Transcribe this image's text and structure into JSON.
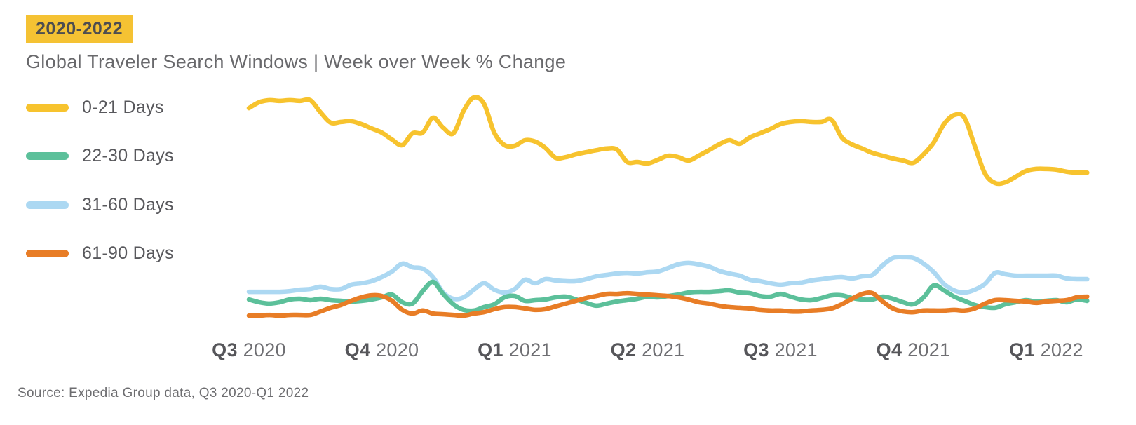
{
  "badge": {
    "label": "2020-2022"
  },
  "title": "Global Traveler Search Windows | Week over Week % Change",
  "source": "Source: Expedia Group data, Q3 2020-Q1 2022",
  "colors": {
    "badge_bg": "#F5C233",
    "badge_text": "#4E4E50",
    "title_text": "#69696C",
    "legend_text": "#58585C",
    "axis_quarter_text": "#56565A",
    "axis_year_text": "#6F6F73",
    "source_text": "#6D6D70",
    "series_yellow": "#F7C32E",
    "series_green": "#5CC09A",
    "series_blue": "#ACD8F2",
    "series_orange": "#E87D26"
  },
  "legend": [
    {
      "label": "0-21 Days",
      "color": "#F7C32E"
    },
    {
      "label": "22-30 Days",
      "color": "#5CC09A"
    },
    {
      "label": "31-60 Days",
      "color": "#ACD8F2"
    },
    {
      "label": "61-90 Days",
      "color": "#E87D26"
    }
  ],
  "chart_data": {
    "type": "line",
    "title": "Global Traveler Search Windows | Week over Week % Change",
    "x_unit": "weeks, week 0 = start of Q3 2020, weekly samples through ~2 weeks past Q1 2022 label",
    "x_labels": [
      {
        "quarter": "Q3",
        "year": "2020",
        "week": 0
      },
      {
        "quarter": "Q4",
        "year": "2020",
        "week": 13
      },
      {
        "quarter": "Q1",
        "year": "2021",
        "week": 26
      },
      {
        "quarter": "Q2",
        "year": "2021",
        "week": 39
      },
      {
        "quarter": "Q3",
        "year": "2021",
        "week": 52
      },
      {
        "quarter": "Q4",
        "year": "2021",
        "week": 65
      },
      {
        "quarter": "Q1",
        "year": "2022",
        "week": 78
      }
    ],
    "x_range_weeks": [
      0,
      82
    ],
    "y_axis": {
      "labels_visible": false,
      "gridlines": false,
      "note": "Source chart shows no y-axis, ticks or gridlines; values below are estimated relative heights where 0 = plot bottom and 100 = plot top",
      "ylim": [
        0,
        100
      ]
    },
    "legend_position": "left",
    "series": [
      {
        "name": "0-21 Days",
        "color": "#F7C32E",
        "values": [
          92.7,
          95.2,
          96.1,
          95.8,
          96.1,
          95.8,
          96.1,
          90.9,
          86.4,
          86.7,
          87.0,
          85.8,
          83.9,
          82.1,
          79.1,
          76.7,
          81.8,
          82.1,
          88.5,
          84.2,
          81.8,
          91.5,
          97.3,
          94.5,
          82.1,
          76.7,
          76.4,
          78.8,
          78.2,
          75.5,
          71.2,
          71.5,
          72.7,
          73.6,
          74.5,
          75.2,
          74.8,
          69.4,
          69.4,
          68.8,
          70.3,
          72.1,
          71.5,
          70.0,
          72.1,
          74.5,
          77.0,
          78.8,
          77.3,
          80.0,
          81.8,
          83.6,
          85.8,
          86.7,
          87.0,
          86.7,
          86.7,
          87.6,
          80.0,
          77.0,
          75.2,
          73.3,
          72.1,
          70.9,
          70.0,
          69.1,
          72.7,
          77.9,
          85.8,
          89.7,
          88.5,
          76.4,
          64.5,
          60.3,
          60.6,
          63.0,
          65.5,
          66.4,
          66.4,
          66.1,
          65.2,
          64.8,
          64.8
        ]
      },
      {
        "name": "22-30 Days",
        "color": "#5CC09A",
        "values": [
          10.0,
          8.8,
          8.2,
          8.8,
          10.0,
          10.3,
          9.7,
          10.3,
          9.7,
          9.4,
          9.1,
          9.4,
          10.0,
          10.9,
          12.1,
          8.8,
          8.2,
          13.6,
          17.6,
          12.4,
          7.9,
          5.5,
          5.2,
          6.7,
          7.9,
          10.9,
          11.5,
          9.4,
          9.7,
          10.0,
          10.9,
          11.2,
          10.0,
          8.5,
          7.3,
          8.2,
          9.1,
          9.7,
          10.3,
          11.2,
          10.9,
          11.5,
          12.1,
          13.0,
          13.3,
          13.3,
          13.6,
          13.9,
          13.0,
          12.7,
          11.5,
          11.2,
          12.4,
          11.2,
          10.0,
          9.7,
          10.6,
          11.8,
          11.8,
          10.6,
          10.0,
          10.0,
          11.2,
          10.3,
          8.8,
          7.9,
          10.9,
          16.1,
          13.9,
          11.2,
          9.4,
          7.6,
          6.7,
          6.4,
          7.9,
          8.8,
          9.7,
          9.1,
          9.4,
          9.7,
          8.8,
          10.0,
          9.4
        ]
      },
      {
        "name": "31-60 Days",
        "color": "#ACD8F2",
        "values": [
          13.3,
          13.3,
          13.3,
          13.3,
          13.6,
          14.2,
          14.5,
          15.5,
          14.5,
          14.5,
          16.4,
          17.0,
          17.9,
          19.7,
          22.1,
          25.5,
          23.9,
          23.3,
          19.7,
          13.0,
          10.3,
          10.9,
          14.2,
          17.0,
          14.2,
          13.0,
          14.5,
          18.5,
          17.0,
          18.8,
          18.2,
          17.9,
          17.9,
          18.8,
          20.0,
          20.6,
          21.2,
          21.5,
          21.2,
          21.8,
          22.1,
          23.6,
          25.2,
          25.8,
          25.2,
          24.2,
          22.4,
          21.2,
          20.3,
          18.5,
          17.9,
          17.0,
          16.4,
          17.0,
          17.3,
          18.2,
          18.8,
          19.4,
          19.7,
          19.1,
          20.0,
          20.6,
          24.8,
          27.9,
          28.2,
          27.9,
          25.5,
          21.8,
          16.7,
          13.9,
          13.0,
          14.2,
          16.7,
          21.5,
          20.9,
          20.3,
          20.3,
          20.3,
          20.3,
          20.3,
          19.1,
          18.8,
          18.8
        ]
      },
      {
        "name": "61-90 Days",
        "color": "#E87D26",
        "values": [
          3.0,
          3.0,
          3.3,
          3.0,
          3.3,
          3.3,
          3.3,
          4.8,
          6.4,
          7.6,
          9.4,
          10.9,
          11.8,
          11.5,
          9.4,
          5.5,
          3.9,
          5.2,
          3.9,
          3.6,
          3.3,
          3.0,
          3.9,
          4.5,
          5.8,
          6.7,
          6.7,
          6.1,
          5.5,
          5.8,
          7.0,
          8.2,
          9.4,
          10.6,
          11.5,
          12.4,
          12.4,
          12.7,
          12.4,
          12.1,
          11.8,
          11.5,
          10.9,
          10.0,
          8.8,
          8.2,
          7.3,
          6.7,
          6.4,
          6.1,
          5.5,
          5.2,
          5.2,
          4.8,
          4.8,
          5.2,
          5.5,
          6.1,
          7.9,
          10.3,
          12.4,
          12.7,
          9.1,
          6.1,
          4.8,
          4.5,
          5.2,
          5.2,
          5.2,
          5.5,
          5.2,
          6.1,
          8.2,
          9.7,
          9.7,
          9.4,
          9.1,
          8.5,
          9.1,
          9.4,
          9.7,
          10.9,
          11.2
        ]
      }
    ]
  }
}
